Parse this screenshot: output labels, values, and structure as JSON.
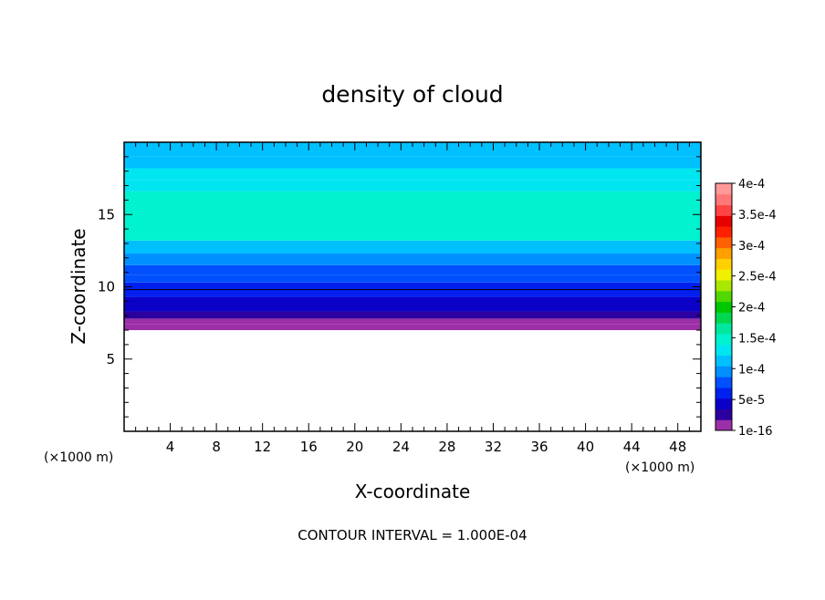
{
  "chart_data": {
    "type": "heatmap",
    "title": "density of cloud",
    "xlabel": "X-coordinate",
    "ylabel": "Z-coordinate",
    "x_unit": "(×1000 m)",
    "z_unit": "(×1000 m)",
    "xlim": [
      0,
      50
    ],
    "ylim": [
      0,
      20
    ],
    "x_ticks": [
      4,
      8,
      12,
      16,
      20,
      24,
      28,
      32,
      36,
      40,
      44,
      48
    ],
    "y_ticks": [
      5,
      10,
      15
    ],
    "field_profile": {
      "z": [
        0,
        7.0,
        7.4,
        7.8,
        8.3,
        8.8,
        9.3,
        9.8,
        10.3,
        10.8,
        11.5,
        12.3,
        13.2,
        16.6,
        17.4,
        18.2,
        19.0,
        20.0
      ],
      "value": [
        0,
        0,
        1e-05,
        2e-05,
        3e-05,
        4e-05,
        5e-05,
        6e-05,
        7e-05,
        8e-05,
        9e-05,
        0.0001,
        0.00014,
        0.00014,
        0.00013,
        0.00012,
        0.00011,
        0.0001
      ]
    },
    "contour_line_z": 9.8,
    "colorbar": {
      "labels": [
        "4e-4",
        "3.5e-4",
        "3e-4",
        "2.5e-4",
        "2e-4",
        "1.5e-4",
        "1e-4",
        "5e-5",
        "1e-16"
      ],
      "colors": [
        "#9b2fa8",
        "#2b009e",
        "#0a00c8",
        "#0020f0",
        "#0050ff",
        "#0090ff",
        "#00c0ff",
        "#00e6f0",
        "#00f2cf",
        "#00e8a0",
        "#00d850",
        "#00c800",
        "#50d800",
        "#a8e800",
        "#f0f000",
        "#ffd000",
        "#ffa000",
        "#ff6000",
        "#ff2000",
        "#e80000",
        "#ff4444",
        "#ff7777",
        "#ff9999"
      ]
    },
    "footer": "CONTOUR INTERVAL = 1.000E-04"
  }
}
